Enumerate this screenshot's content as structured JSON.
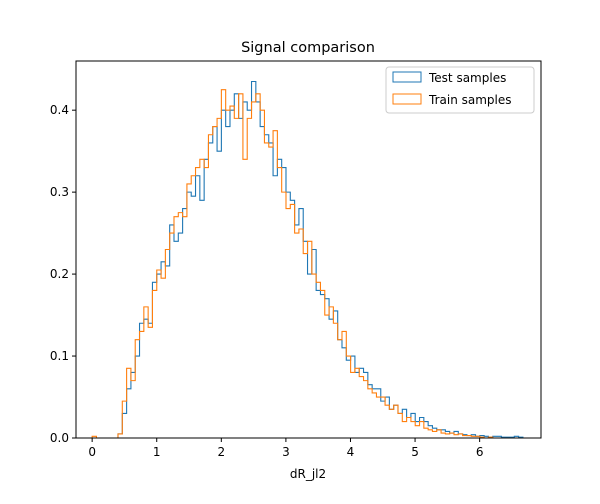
{
  "chart_data": {
    "type": "histogram-step",
    "title": "Signal comparison",
    "xlabel": "dR_jl2",
    "ylabel": "",
    "xlim": [
      -0.25,
      6.95
    ],
    "ylim": [
      0,
      0.46
    ],
    "x_ticks": [
      0,
      1,
      2,
      3,
      4,
      5,
      6
    ],
    "y_ticks": [
      0.0,
      0.1,
      0.2,
      0.3,
      0.4
    ],
    "y_tick_labels": [
      "0.0",
      "0.1",
      "0.2",
      "0.3",
      "0.4"
    ],
    "grid": false,
    "legend_position": "top-right",
    "bin_start": 0.0,
    "bin_width": 0.0667,
    "series": [
      {
        "name": "Test samples",
        "color": "#1f77b4",
        "values": [
          0,
          0,
          0,
          0,
          0,
          0,
          0.005,
          0.03,
          0.06,
          0.08,
          0.1,
          0.14,
          0.145,
          0.14,
          0.19,
          0.2,
          0.215,
          0.21,
          0.26,
          0.24,
          0.25,
          0.28,
          0.3,
          0.295,
          0.32,
          0.29,
          0.34,
          0.36,
          0.38,
          0.35,
          0.4,
          0.38,
          0.4,
          0.42,
          0.39,
          0.41,
          0.4,
          0.435,
          0.41,
          0.38,
          0.37,
          0.36,
          0.32,
          0.34,
          0.33,
          0.3,
          0.29,
          0.26,
          0.28,
          0.24,
          0.2,
          0.23,
          0.18,
          0.175,
          0.17,
          0.145,
          0.155,
          0.12,
          0.11,
          0.095,
          0.1,
          0.08,
          0.085,
          0.08,
          0.065,
          0.06,
          0.06,
          0.045,
          0.05,
          0.035,
          0.04,
          0.03,
          0.035,
          0.025,
          0.03,
          0.02,
          0.025,
          0.02,
          0.015,
          0.012,
          0.01,
          0.01,
          0.008,
          0.006,
          0.008,
          0.005,
          0.004,
          0.003,
          0.004,
          0.002,
          0.003,
          0.002,
          0.001,
          0.002,
          0.002,
          0.001,
          0.001,
          0.001,
          0.002,
          0.001
        ]
      },
      {
        "name": "Train samples",
        "color": "#ff7f0e",
        "values": [
          0.002,
          0.0,
          0.0,
          0.0,
          0.0,
          0.0,
          0.005,
          0.045,
          0.085,
          0.07,
          0.12,
          0.13,
          0.16,
          0.135,
          0.18,
          0.205,
          0.195,
          0.23,
          0.25,
          0.27,
          0.275,
          0.27,
          0.31,
          0.32,
          0.33,
          0.34,
          0.33,
          0.37,
          0.38,
          0.39,
          0.425,
          0.4,
          0.405,
          0.39,
          0.42,
          0.34,
          0.39,
          0.41,
          0.42,
          0.4,
          0.36,
          0.355,
          0.375,
          0.33,
          0.3,
          0.28,
          0.285,
          0.25,
          0.255,
          0.225,
          0.24,
          0.2,
          0.19,
          0.18,
          0.15,
          0.16,
          0.14,
          0.12,
          0.13,
          0.1,
          0.08,
          0.085,
          0.075,
          0.07,
          0.06,
          0.055,
          0.05,
          0.05,
          0.04,
          0.035,
          0.04,
          0.03,
          0.02,
          0.025,
          0.02,
          0.015,
          0.02,
          0.012,
          0.01,
          0.008,
          0.01,
          0.006,
          0.005,
          0.006,
          0.004,
          0.005,
          0.003,
          0.003,
          0.002,
          0.002,
          0.001,
          0.0,
          0.001,
          0.0,
          0.0,
          0.0,
          0.0,
          0.0,
          0.0,
          0.0
        ]
      }
    ]
  }
}
